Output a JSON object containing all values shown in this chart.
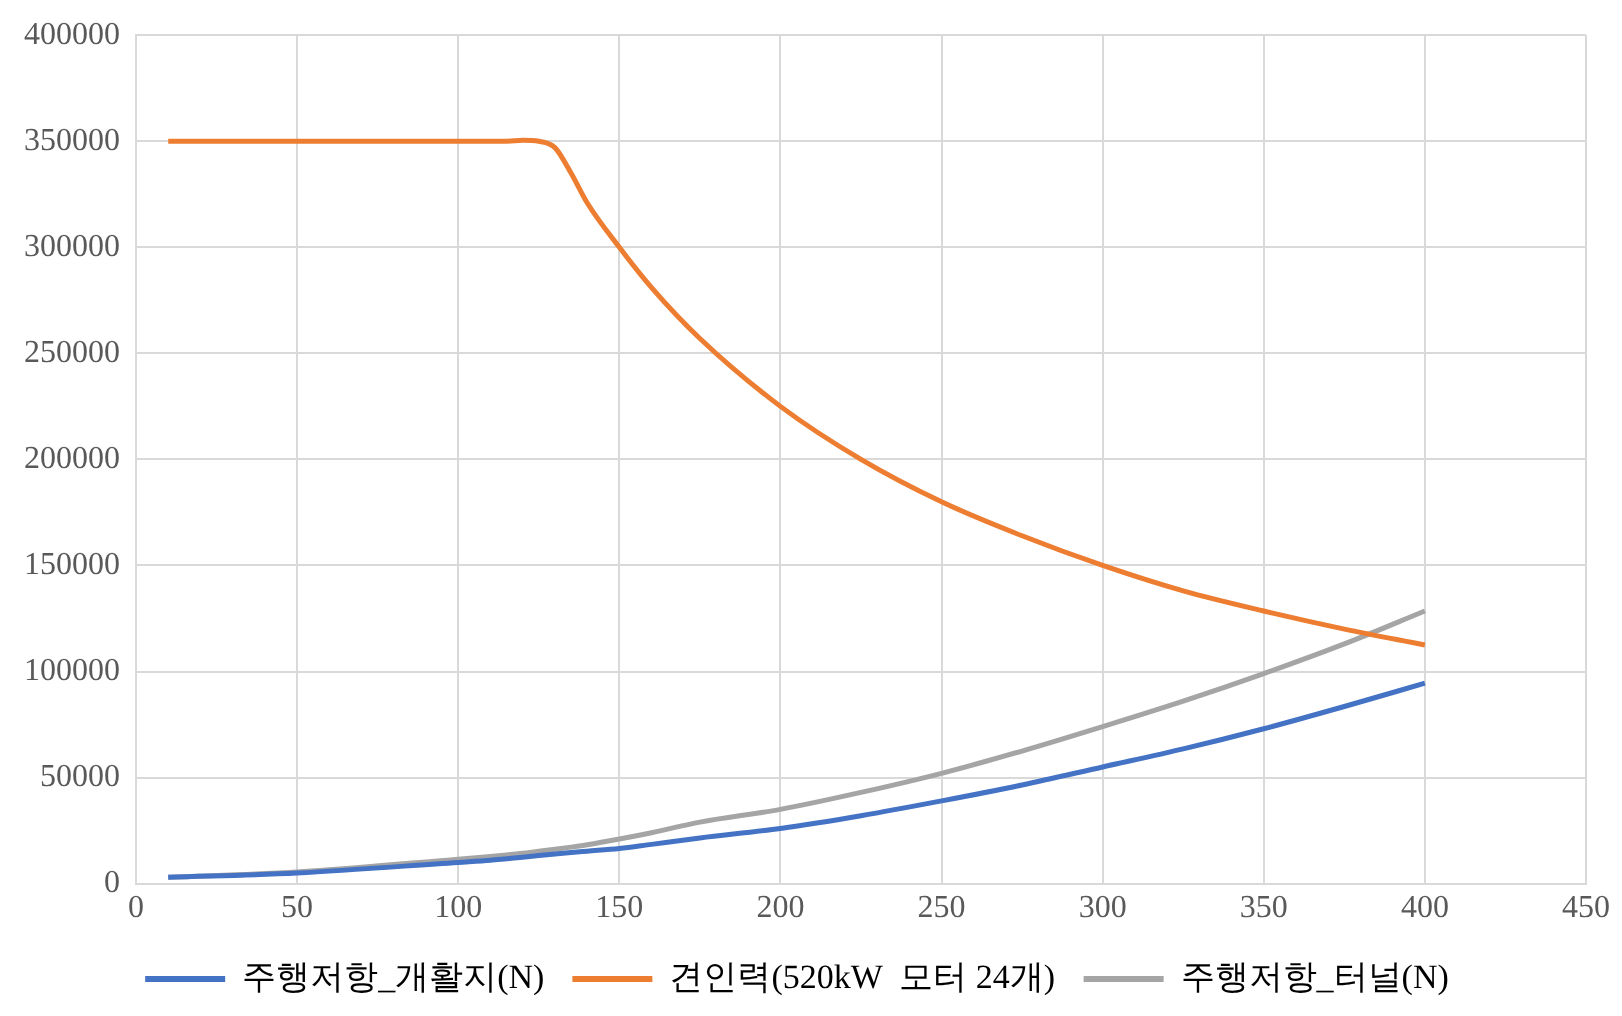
{
  "chart_data": {
    "type": "line",
    "x": [
      10,
      50,
      100,
      110,
      115,
      120,
      125,
      130,
      135,
      140,
      150,
      160,
      175,
      200,
      225,
      250,
      275,
      300,
      325,
      350,
      375,
      400
    ],
    "series": [
      {
        "name": "주행저항_개활지(N)",
        "color": "#4472c4",
        "values": [
          3000,
          5000,
          10000,
          11000,
          11700,
          12400,
          13200,
          14000,
          14700,
          15300,
          16500,
          18500,
          21500,
          26000,
          32000,
          39000,
          46500,
          55000,
          63500,
          73000,
          83500,
          94500
        ]
      },
      {
        "name": "견인력(520kW  모터 24개)",
        "color": "#ed7d31",
        "values": [
          350000,
          350000,
          350000,
          350000,
          350000,
          350500,
          350000,
          347000,
          335000,
          321000,
          300000,
          281000,
          257000,
          225000,
          200000,
          180000,
          164000,
          150000,
          138000,
          128500,
          120000,
          112500
        ]
      },
      {
        "name": "주행저항_터널(N)",
        "color": "#a5a5a5",
        "values": [
          3000,
          5500,
          11500,
          12800,
          13500,
          14300,
          15300,
          16200,
          17200,
          18300,
          21000,
          24000,
          29000,
          35000,
          43000,
          52000,
          62500,
          74000,
          86000,
          99000,
          113000,
          128500
        ]
      }
    ],
    "xlim": [
      0,
      450
    ],
    "xticks": [
      0,
      50,
      100,
      150,
      200,
      250,
      300,
      350,
      400,
      450
    ],
    "ylim": [
      0,
      400000
    ],
    "yticks": [
      0,
      50000,
      100000,
      150000,
      200000,
      250000,
      300000,
      350000,
      400000
    ],
    "grid": true,
    "legend": "bottom",
    "marker": "none",
    "line_style": "solid"
  }
}
